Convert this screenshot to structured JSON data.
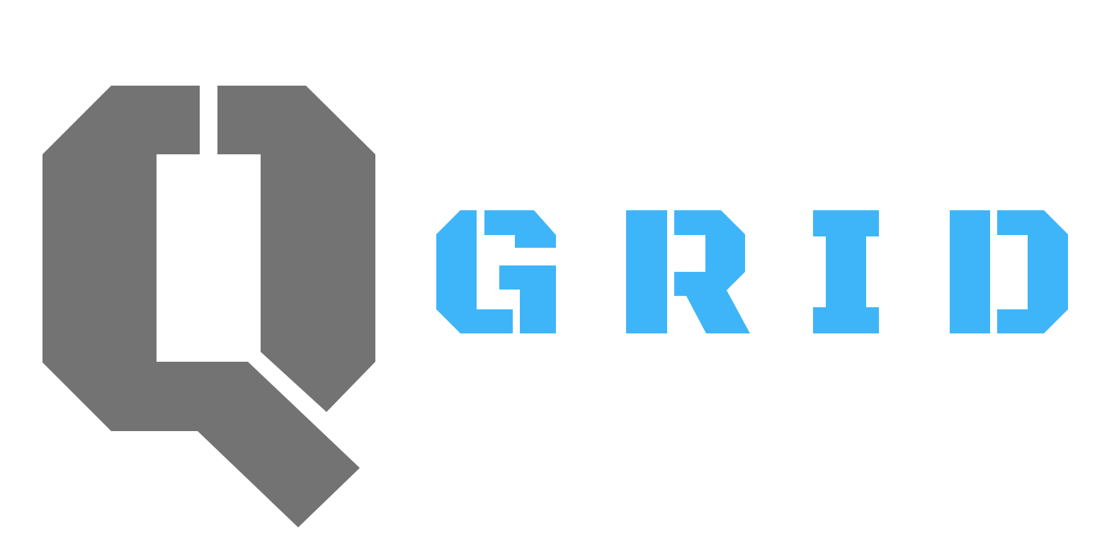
{
  "logo": {
    "wordmark": "GRID",
    "letters": [
      "G",
      "R",
      "I",
      "D"
    ],
    "colors": {
      "mark": "#737373",
      "wordmark": "#3FB5F9",
      "background": "#FFFFFF"
    }
  }
}
